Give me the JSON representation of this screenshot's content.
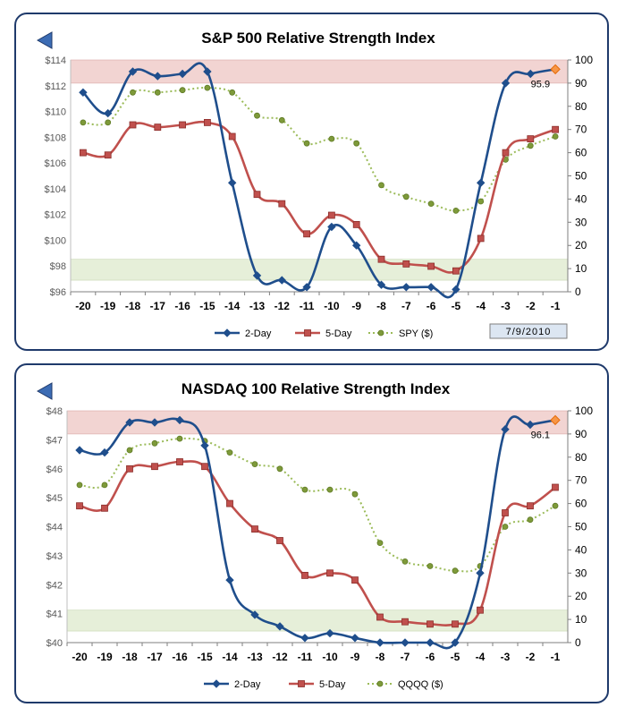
{
  "chart_data": [
    {
      "type": "line",
      "title": "S&P 500 Relative Strength Index",
      "categories": [
        "-20",
        "-19",
        "-18",
        "-17",
        "-16",
        "-15",
        "-14",
        "-13",
        "-12",
        "-11",
        "-10",
        "-9",
        "-8",
        "-7",
        "-6",
        "-5",
        "-4",
        "-3",
        "-2",
        "-1"
      ],
      "left_axis": {
        "ylim": [
          96,
          114
        ],
        "ticks": [
          "$96",
          "$98",
          "$100",
          "$102",
          "$104",
          "$106",
          "$108",
          "$110",
          "$112",
          "$114"
        ]
      },
      "right_axis": {
        "ylim": [
          0,
          100
        ],
        "ticks": [
          "0",
          "10",
          "20",
          "30",
          "40",
          "50",
          "60",
          "70",
          "80",
          "90",
          "100"
        ]
      },
      "bands": [
        {
          "from": 90,
          "to": 100,
          "color": "#f2d4d2"
        },
        {
          "from": 5,
          "to": 14,
          "color": "#e6efd9"
        }
      ],
      "series": [
        {
          "name": "2-Day",
          "axis": "right",
          "color": "#1f4e8c",
          "marker": "diamond",
          "style": "solid",
          "values": [
            86,
            77,
            95,
            93,
            94,
            95,
            47,
            7,
            5,
            2,
            28,
            20,
            3,
            2,
            2,
            1,
            47,
            90,
            94,
            96
          ]
        },
        {
          "name": "5-Day",
          "axis": "right",
          "color": "#c0504d",
          "marker": "square",
          "style": "solid",
          "values": [
            60,
            59,
            72,
            71,
            72,
            73,
            67,
            42,
            38,
            25,
            33,
            29,
            14,
            12,
            11,
            9,
            23,
            60,
            66,
            70
          ]
        },
        {
          "name": "SPY ($)",
          "axis": "right",
          "color": "#9bbb59",
          "marker": "circle",
          "style": "dotted",
          "values": [
            73,
            73,
            86,
            86,
            87,
            88,
            86,
            76,
            74,
            64,
            66,
            64,
            46,
            41,
            38,
            35,
            39,
            57,
            63,
            67
          ]
        }
      ],
      "annotation": {
        "value_label": "95.9"
      },
      "date": "7/9/2010"
    },
    {
      "type": "line",
      "title": "NASDAQ 100 Relative Strength Index",
      "categories": [
        "-20",
        "-19",
        "-18",
        "-17",
        "-16",
        "-15",
        "-14",
        "-13",
        "-12",
        "-11",
        "-10",
        "-9",
        "-8",
        "-7",
        "-6",
        "-5",
        "-4",
        "-3",
        "-2",
        "-1"
      ],
      "left_axis": {
        "ylim": [
          40,
          48
        ],
        "ticks": [
          "$40",
          "$41",
          "$42",
          "$43",
          "$44",
          "$45",
          "$46",
          "$47",
          "$48"
        ]
      },
      "right_axis": {
        "ylim": [
          0,
          100
        ],
        "ticks": [
          "0",
          "10",
          "20",
          "30",
          "40",
          "50",
          "60",
          "70",
          "80",
          "90",
          "100"
        ]
      },
      "bands": [
        {
          "from": 90,
          "to": 100,
          "color": "#f2d4d2"
        },
        {
          "from": 5,
          "to": 14,
          "color": "#e6efd9"
        }
      ],
      "series": [
        {
          "name": "2-Day",
          "axis": "right",
          "color": "#1f4e8c",
          "marker": "diamond",
          "style": "solid",
          "values": [
            83,
            82,
            95,
            95,
            96,
            85,
            27,
            12,
            7,
            2,
            4,
            2,
            0,
            0,
            0,
            0,
            30,
            92,
            94,
            96
          ]
        },
        {
          "name": "5-Day",
          "axis": "right",
          "color": "#c0504d",
          "marker": "square",
          "style": "solid",
          "values": [
            59,
            58,
            75,
            76,
            78,
            76,
            60,
            49,
            44,
            29,
            30,
            27,
            11,
            9,
            8,
            8,
            14,
            56,
            59,
            67
          ]
        },
        {
          "name": "QQQQ ($)",
          "axis": "right",
          "color": "#9bbb59",
          "marker": "circle",
          "style": "dotted",
          "values": [
            68,
            68,
            83,
            86,
            88,
            87,
            82,
            77,
            75,
            66,
            66,
            64,
            43,
            35,
            33,
            31,
            33,
            50,
            53,
            59
          ]
        }
      ],
      "annotation": {
        "value_label": "96.1"
      }
    }
  ]
}
